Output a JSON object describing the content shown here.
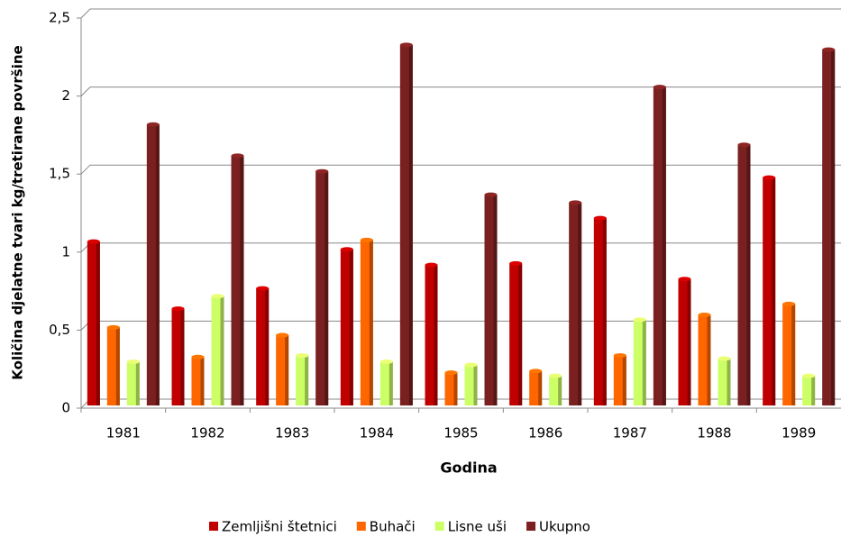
{
  "chart_data": {
    "type": "bar",
    "x_label": "Godina",
    "y_label": "Količina djelatne tvari kg/tretirane površine",
    "categories": [
      "1981",
      "1982",
      "1983",
      "1984",
      "1985",
      "1986",
      "1987",
      "1988",
      "1989"
    ],
    "series": [
      {
        "name": "Zemljišni štetnici",
        "color": "#c00000",
        "values": [
          1.05,
          0.62,
          0.75,
          1.0,
          0.9,
          0.91,
          1.2,
          0.81,
          1.46
        ]
      },
      {
        "name": "Buhači",
        "color": "#ff6600",
        "values": [
          0.5,
          0.31,
          0.45,
          1.06,
          0.21,
          0.22,
          0.32,
          0.58,
          0.65
        ]
      },
      {
        "name": "Lisne uši",
        "color": "#ccff66",
        "values": [
          0.28,
          0.7,
          0.32,
          0.28,
          0.26,
          0.19,
          0.55,
          0.3,
          0.19
        ]
      },
      {
        "name": "Ukupno",
        "color": "#7b2020",
        "values": [
          1.8,
          1.6,
          1.5,
          2.31,
          1.35,
          1.3,
          2.04,
          1.67,
          2.28
        ]
      }
    ],
    "ylim": [
      0,
      2.5
    ],
    "yticks": [
      0,
      {
        "value": 0.5,
        "label": "0,5"
      },
      1,
      {
        "value": 1.5,
        "label": "1,5"
      },
      2,
      {
        "value": 2.5,
        "label": "2,5"
      }
    ],
    "grid": true,
    "legend": "bottom"
  }
}
